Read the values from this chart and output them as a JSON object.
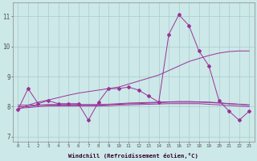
{
  "hours": [
    0,
    1,
    2,
    3,
    4,
    5,
    6,
    7,
    8,
    9,
    10,
    11,
    12,
    13,
    14,
    15,
    16,
    17,
    18,
    19,
    20,
    21,
    22,
    23
  ],
  "zigzag": [
    7.9,
    8.6,
    8.1,
    8.2,
    8.1,
    8.1,
    8.1,
    7.55,
    8.15,
    8.6,
    8.6,
    8.65,
    8.55,
    8.35,
    8.15,
    10.4,
    11.05,
    10.7,
    9.85,
    9.35,
    8.2,
    7.85,
    7.55,
    7.85
  ],
  "smooth_rising": [
    7.9,
    8.05,
    8.15,
    8.22,
    8.3,
    8.38,
    8.45,
    8.5,
    8.55,
    8.6,
    8.65,
    8.75,
    8.85,
    8.95,
    9.05,
    9.2,
    9.35,
    9.5,
    9.6,
    9.7,
    9.78,
    9.83,
    9.85,
    9.85
  ],
  "flat1": [
    8.0,
    8.0,
    8.05,
    8.05,
    8.05,
    8.05,
    8.05,
    8.05,
    8.05,
    8.07,
    8.08,
    8.1,
    8.1,
    8.12,
    8.13,
    8.15,
    8.15,
    8.15,
    8.15,
    8.14,
    8.12,
    8.1,
    8.08,
    8.05
  ],
  "flat2": [
    8.05,
    8.05,
    8.05,
    8.07,
    8.07,
    8.07,
    8.07,
    8.07,
    8.07,
    8.08,
    8.1,
    8.12,
    8.13,
    8.14,
    8.15,
    8.16,
    8.17,
    8.17,
    8.16,
    8.15,
    8.13,
    8.1,
    8.08,
    8.06
  ],
  "flat3": [
    7.95,
    7.97,
    8.0,
    8.02,
    8.02,
    8.02,
    8.02,
    8.02,
    8.02,
    8.03,
    8.05,
    8.06,
    8.07,
    8.08,
    8.09,
    8.1,
    8.1,
    8.1,
    8.1,
    8.08,
    8.06,
    8.04,
    8.02,
    8.0
  ],
  "line_color": "#993399",
  "bg_color": "#cce8e8",
  "grid_color": "#aacccc",
  "ylabel_ticks": [
    7,
    8,
    9,
    10,
    11
  ],
  "ylim": [
    6.85,
    11.45
  ],
  "xlim": [
    -0.5,
    23.5
  ],
  "xlabel": "Windchill (Refroidissement éolien,°C)"
}
